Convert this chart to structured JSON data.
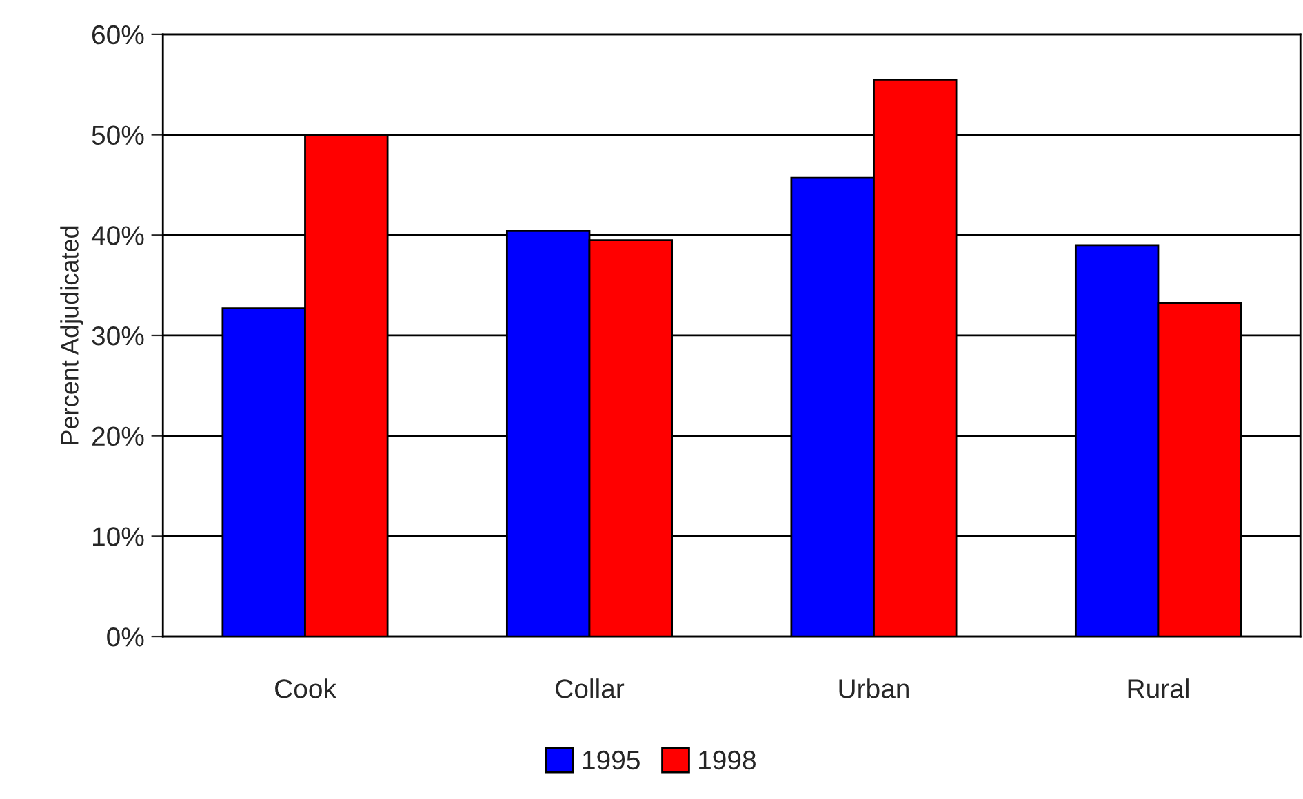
{
  "chart_data": {
    "type": "bar",
    "ylabel": "Percent Adjudicated",
    "categories": [
      "Cook",
      "Collar",
      "Urban",
      "Rural"
    ],
    "series": [
      {
        "name": "1995",
        "color": "#0000ff",
        "values": [
          32.7,
          40.4,
          45.7,
          39.0
        ]
      },
      {
        "name": "1998",
        "color": "#ff0000",
        "values": [
          50.0,
          39.5,
          55.5,
          33.2
        ]
      }
    ],
    "ylim": [
      0,
      60
    ],
    "yticks": [
      {
        "value": 0,
        "label": "0%"
      },
      {
        "value": 10,
        "label": "10%"
      },
      {
        "value": 20,
        "label": "20%"
      },
      {
        "value": 30,
        "label": "30%"
      },
      {
        "value": 40,
        "label": "40%"
      },
      {
        "value": 50,
        "label": "50%"
      },
      {
        "value": 60,
        "label": "60%"
      }
    ],
    "grid": "y",
    "legend": "bottom"
  }
}
